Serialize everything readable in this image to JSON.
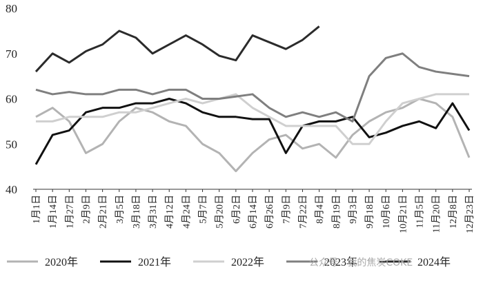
{
  "chart_data": {
    "type": "line",
    "categories": [
      "1月1日",
      "1月14日",
      "1月27日",
      "2月9日",
      "2月21日",
      "3月5日",
      "3月18日",
      "3月31日",
      "4月12日",
      "4月24日",
      "5月7日",
      "5月20日",
      "6月2日",
      "6月14日",
      "6月26日",
      "7月9日",
      "7月22日",
      "8月4日",
      "8月19日",
      "9月3日",
      "9月18日",
      "10月6日",
      "10月21日",
      "11月5日",
      "11月20日",
      "12月8日",
      "12月23日"
    ],
    "series": [
      {
        "name": "2020年",
        "color": "#b3b3b3",
        "values": [
          56,
          58,
          55,
          48,
          50,
          55,
          58,
          57,
          55,
          54,
          50,
          48,
          44,
          48,
          51,
          52,
          49,
          50,
          47,
          52,
          55,
          57,
          58,
          60,
          59,
          56,
          47
        ]
      },
      {
        "name": "2021年",
        "color": "#111111",
        "values": [
          45.5,
          52,
          53,
          57,
          58,
          58,
          59,
          59,
          60,
          59,
          57,
          56,
          56,
          55.5,
          55.5,
          48,
          54,
          55,
          55,
          56,
          51.5,
          52.5,
          54,
          55,
          53.5,
          59,
          53
        ]
      },
      {
        "name": "2022年",
        "color": "#cfcfcf",
        "values": [
          55,
          55,
          56,
          56,
          56,
          57,
          57,
          58,
          59,
          60,
          59,
          60,
          61,
          58,
          56,
          54,
          54,
          54,
          54,
          50,
          50,
          55,
          59,
          60,
          61,
          61,
          61
        ]
      },
      {
        "name": "2023年",
        "color": "#7f7f7f",
        "values": [
          62,
          61,
          61.5,
          61,
          61,
          62,
          62,
          61,
          62,
          62,
          60,
          60,
          60.5,
          61,
          58,
          56,
          57,
          56,
          57,
          55,
          65,
          69,
          70,
          67,
          66,
          65.5,
          65
        ]
      },
      {
        "name": "2024年",
        "color": "#2b2b2b",
        "values": [
          66,
          70,
          68,
          70.5,
          72,
          75,
          73.5,
          70,
          72,
          74,
          72,
          69.5,
          68.5,
          74,
          72.5,
          71,
          73,
          76,
          null,
          null,
          null,
          null,
          null,
          null,
          null,
          null,
          null
        ]
      }
    ],
    "ylim": [
      40,
      80
    ],
    "yticks": [
      40,
      50,
      60,
      70,
      80
    ],
    "annotation": "公众号 · 我的焦炭COKE"
  }
}
